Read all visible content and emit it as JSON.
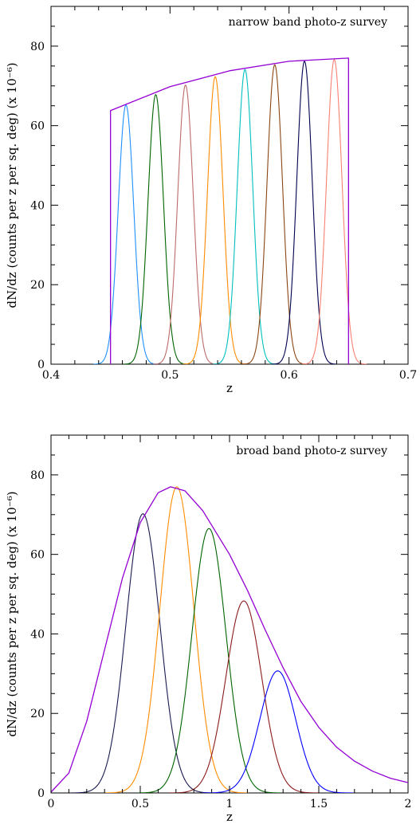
{
  "chart_data": [
    {
      "type": "line",
      "annotation": "narrow band photo-z survey",
      "xlabel": "z",
      "ylabel": "dN/dz (counts per z per sq. deg) (x 10⁻⁶)",
      "xlim": [
        0.4,
        0.7
      ],
      "ylim": [
        0,
        90
      ],
      "xticks": [
        0.4,
        0.5,
        0.6,
        0.7
      ],
      "xtick_labels": [
        "0.4",
        "0.5",
        "0.6",
        "0.7"
      ],
      "yticks": [
        0,
        20,
        40,
        60,
        80
      ],
      "ytick_labels": [
        "0",
        "20",
        "40",
        "60",
        "80"
      ],
      "envelope": {
        "color": "#9400D3",
        "z_min": 0.45,
        "z_max": 0.65,
        "points": [
          [
            0.45,
            63.8
          ],
          [
            0.5,
            69.8
          ],
          [
            0.55,
            73.8
          ],
          [
            0.6,
            76.2
          ],
          [
            0.65,
            77.0
          ]
        ]
      },
      "series": [
        {
          "color": "#1E90FF",
          "center": 0.463,
          "peak": 65.2,
          "sigma": 0.0065
        },
        {
          "color": "#006400",
          "center": 0.488,
          "peak": 67.8,
          "sigma": 0.0065
        },
        {
          "color": "#BC6A6A",
          "center": 0.513,
          "peak": 70.2,
          "sigma": 0.0065
        },
        {
          "color": "#FF8C00",
          "center": 0.538,
          "peak": 72.3,
          "sigma": 0.0065
        },
        {
          "color": "#00BFBF",
          "center": 0.563,
          "peak": 74.1,
          "sigma": 0.0065
        },
        {
          "color": "#8B4513",
          "center": 0.588,
          "peak": 75.3,
          "sigma": 0.0065
        },
        {
          "color": "#000050",
          "center": 0.613,
          "peak": 76.2,
          "sigma": 0.0065
        },
        {
          "color": "#FA8072",
          "center": 0.638,
          "peak": 76.6,
          "sigma": 0.0065
        }
      ]
    },
    {
      "type": "line",
      "annotation": "broad band photo-z survey",
      "xlabel": "z",
      "ylabel": "dN/dz (counts per z per sq. deg) (x 10⁻⁶)",
      "xlim": [
        0,
        2
      ],
      "ylim": [
        0,
        90
      ],
      "xticks": [
        0,
        0.5,
        1,
        1.5,
        2
      ],
      "xtick_labels": [
        "0",
        "0.5",
        "1",
        "1.5",
        "2"
      ],
      "yticks": [
        0,
        20,
        40,
        60,
        80
      ],
      "ytick_labels": [
        "0",
        "20",
        "40",
        "60",
        "80"
      ],
      "envelope": {
        "color": "#9400D3",
        "points": [
          [
            0.0,
            0.2
          ],
          [
            0.1,
            5.0
          ],
          [
            0.2,
            18.0
          ],
          [
            0.3,
            36.0
          ],
          [
            0.4,
            54.0
          ],
          [
            0.5,
            68.0
          ],
          [
            0.6,
            75.5
          ],
          [
            0.67,
            77.0
          ],
          [
            0.75,
            76.0
          ],
          [
            0.85,
            71.0
          ],
          [
            1.0,
            60.0
          ],
          [
            1.1,
            51.0
          ],
          [
            1.2,
            41.0
          ],
          [
            1.3,
            31.5
          ],
          [
            1.4,
            23.0
          ],
          [
            1.5,
            16.5
          ],
          [
            1.6,
            11.5
          ],
          [
            1.7,
            8.0
          ],
          [
            1.8,
            5.5
          ],
          [
            1.9,
            3.7
          ],
          [
            2.0,
            2.6
          ]
        ]
      },
      "series": [
        {
          "color": "#1A1A50",
          "center": 0.515,
          "peak": 70.2,
          "sigma": 0.095
        },
        {
          "color": "#FF8C00",
          "center": 0.705,
          "peak": 77.0,
          "sigma": 0.095
        },
        {
          "color": "#006400",
          "center": 0.885,
          "peak": 66.5,
          "sigma": 0.095
        },
        {
          "color": "#8B1A1A",
          "center": 1.08,
          "peak": 48.3,
          "sigma": 0.1
        },
        {
          "color": "#0000FF",
          "center": 1.27,
          "peak": 30.7,
          "sigma": 0.1
        }
      ]
    }
  ]
}
